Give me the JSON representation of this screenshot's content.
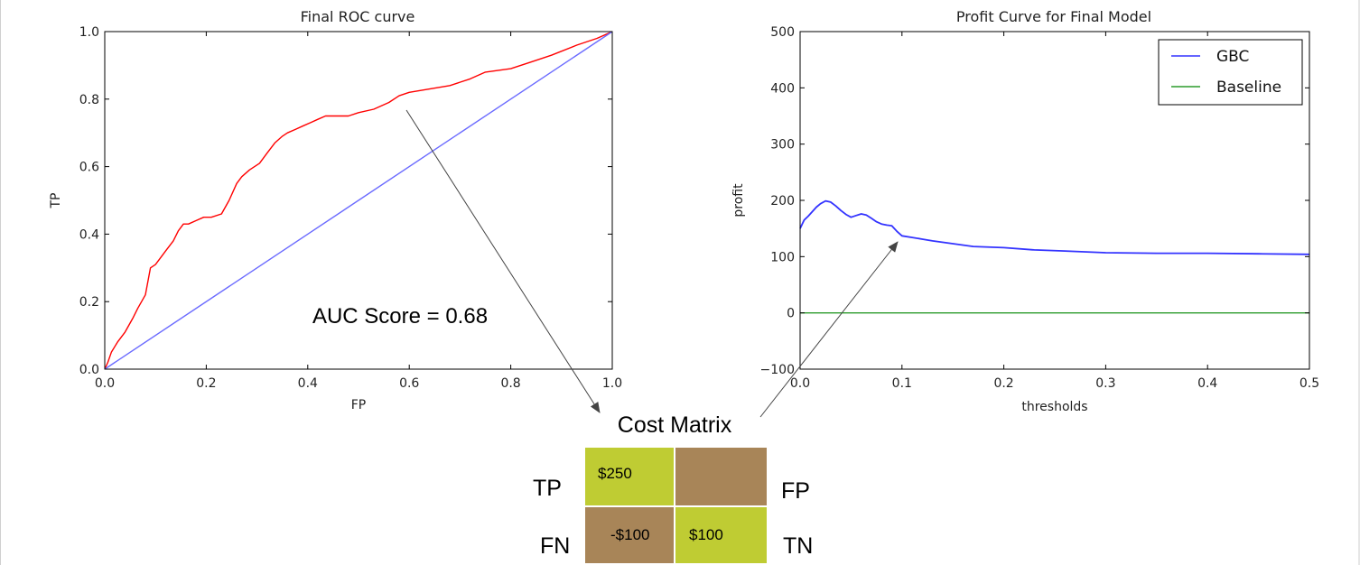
{
  "chart_data": [
    {
      "type": "line",
      "title": "Final ROC curve",
      "xlabel": "FP",
      "ylabel": "TP",
      "xlim": [
        0,
        1
      ],
      "ylim": [
        0,
        1
      ],
      "xticks": [
        "0.0",
        "0.2",
        "0.4",
        "0.6",
        "0.8",
        "1.0"
      ],
      "yticks": [
        "0.0",
        "0.2",
        "0.4",
        "0.6",
        "0.8",
        "1.0"
      ],
      "grid": false,
      "series": [
        {
          "color": "#ff0000",
          "x": [
            0,
            0.006,
            0.013,
            0.025,
            0.04,
            0.055,
            0.065,
            0.08,
            0.085,
            0.09,
            0.1,
            0.12,
            0.135,
            0.145,
            0.155,
            0.165,
            0.18,
            0.195,
            0.21,
            0.23,
            0.245,
            0.26,
            0.27,
            0.285,
            0.305,
            0.32,
            0.335,
            0.35,
            0.36,
            0.375,
            0.39,
            0.405,
            0.42,
            0.435,
            0.455,
            0.48,
            0.5,
            0.53,
            0.56,
            0.58,
            0.6,
            0.64,
            0.68,
            0.72,
            0.75,
            0.8,
            0.84,
            0.88,
            0.93,
            0.97,
            1.0
          ],
          "y": [
            0,
            0.02,
            0.05,
            0.08,
            0.11,
            0.15,
            0.18,
            0.22,
            0.26,
            0.3,
            0.31,
            0.35,
            0.38,
            0.41,
            0.43,
            0.43,
            0.44,
            0.45,
            0.45,
            0.46,
            0.5,
            0.55,
            0.57,
            0.59,
            0.61,
            0.64,
            0.67,
            0.69,
            0.7,
            0.71,
            0.72,
            0.73,
            0.74,
            0.75,
            0.75,
            0.75,
            0.76,
            0.77,
            0.79,
            0.81,
            0.82,
            0.83,
            0.84,
            0.86,
            0.88,
            0.89,
            0.91,
            0.93,
            0.96,
            0.98,
            1.0
          ]
        },
        {
          "color": "#6b6bff",
          "x": [
            0,
            1
          ],
          "y": [
            0,
            1
          ]
        }
      ],
      "annotations": [
        {
          "text": "AUC Score = 0.68",
          "x": 0.37,
          "y": 0.15
        }
      ]
    },
    {
      "type": "line",
      "title": "Profit Curve for Final Model",
      "xlabel": "thresholds",
      "ylabel": "profit",
      "xlim": [
        0,
        0.5
      ],
      "ylim": [
        -100,
        500
      ],
      "xticks": [
        "0.0",
        "0.1",
        "0.2",
        "0.3",
        "0.4",
        "0.5"
      ],
      "yticks": [
        "−100",
        "0",
        "100",
        "200",
        "300",
        "400",
        "500"
      ],
      "grid": false,
      "legend_position": "top-right",
      "series": [
        {
          "name": "GBC",
          "color": "#3333ff",
          "x": [
            0,
            0.004,
            0.008,
            0.012,
            0.016,
            0.02,
            0.025,
            0.03,
            0.035,
            0.04,
            0.045,
            0.05,
            0.055,
            0.06,
            0.065,
            0.07,
            0.075,
            0.08,
            0.085,
            0.09,
            0.095,
            0.1,
            0.11,
            0.12,
            0.13,
            0.15,
            0.17,
            0.2,
            0.23,
            0.26,
            0.3,
            0.35,
            0.4,
            0.45,
            0.5
          ],
          "y": [
            150,
            165,
            172,
            180,
            188,
            194,
            199,
            197,
            190,
            182,
            175,
            170,
            173,
            176,
            174,
            168,
            162,
            158,
            156,
            155,
            145,
            137,
            134,
            131,
            128,
            123,
            118,
            116,
            112,
            110,
            107,
            106,
            106,
            105,
            104
          ]
        },
        {
          "name": "Baseline",
          "color": "#2b9b2b",
          "x": [
            0,
            0.5
          ],
          "y": [
            0,
            0
          ]
        }
      ]
    }
  ],
  "cost_matrix": {
    "title": "Cost Matrix",
    "row_labels": [
      "TP",
      "FN"
    ],
    "col_labels": [
      "FP",
      "TN"
    ],
    "cells": [
      {
        "text": "$250",
        "color": "#bfcc33"
      },
      {
        "text": "",
        "color": "#a88558"
      },
      {
        "text": "-$100",
        "color": "#a88558"
      },
      {
        "text": "$100",
        "color": "#bfcc33"
      }
    ]
  }
}
